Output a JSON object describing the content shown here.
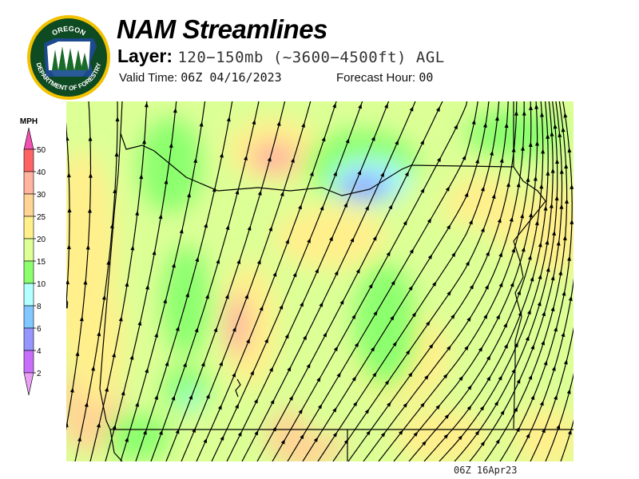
{
  "header": {
    "title": "NAM Streamlines",
    "layer_label": "Layer:",
    "layer_value": "120−150mb (~3600−4500ft) AGL",
    "valid_label": "Valid Time:",
    "valid_value": "06Z 04/16/2023",
    "forecast_label": "Forecast Hour:",
    "forecast_value": "00"
  },
  "logo": {
    "top_text": "OREGON",
    "bottom_text": "DEPARTMENT OF FORESTRY"
  },
  "legend": {
    "unit": "MPH",
    "levels": [
      {
        "label": "50",
        "color": "#ff6464"
      },
      {
        "label": "40",
        "color": "#ffb4a0"
      },
      {
        "label": "30",
        "color": "#ffd494"
      },
      {
        "label": "25",
        "color": "#fff08c"
      },
      {
        "label": "20",
        "color": "#dcff96"
      },
      {
        "label": "15",
        "color": "#8cff6e"
      },
      {
        "label": "10",
        "color": "#b4ffff"
      },
      {
        "label": "8",
        "color": "#82c8ff"
      },
      {
        "label": "6",
        "color": "#9696ff"
      },
      {
        "label": "4",
        "color": "#c86efa"
      },
      {
        "label": "2",
        "color": ""
      }
    ],
    "over_color": "#f050b0",
    "under_color": "#eaa0f5"
  },
  "footer": {
    "stamp": "06Z 16Apr23"
  }
}
